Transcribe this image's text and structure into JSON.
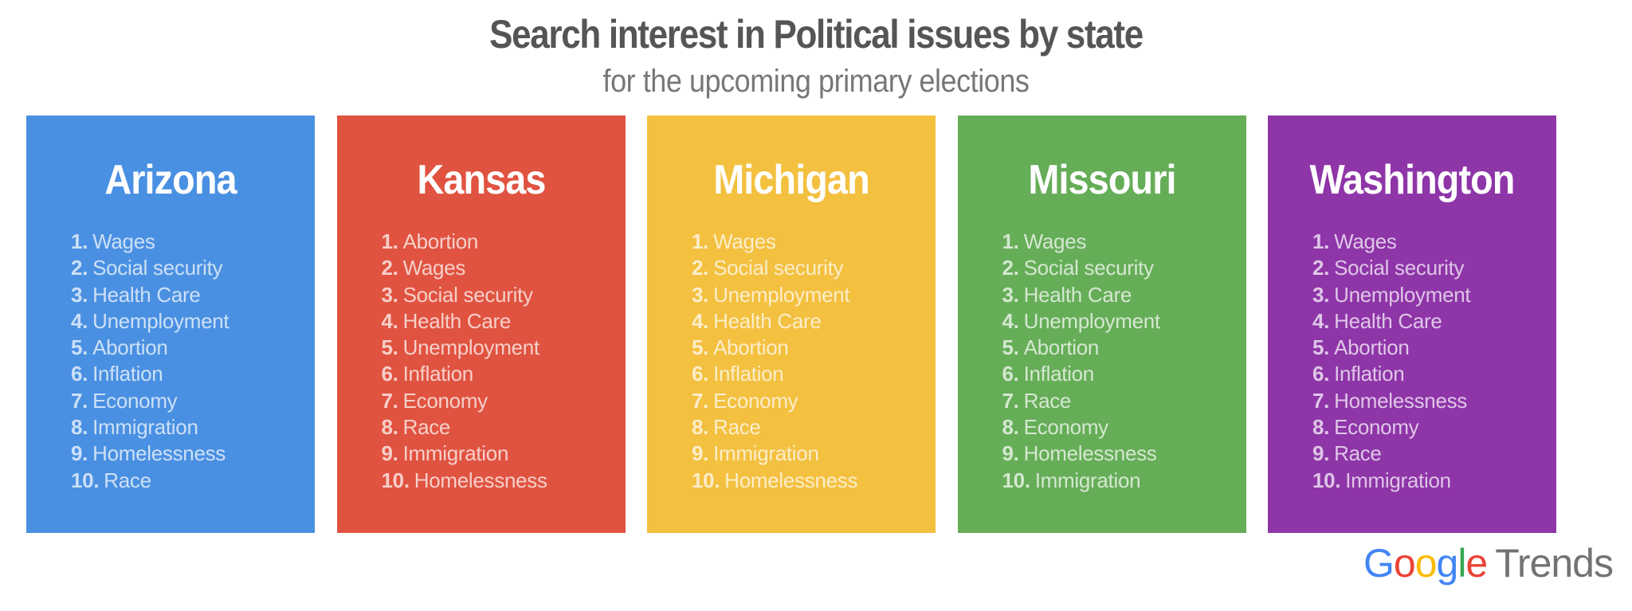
{
  "title": "Search interest in Political issues by state",
  "subtitle": "for the upcoming primary elections",
  "states": [
    {
      "name": "Arizona",
      "color": "#4a90e2",
      "items": [
        "Wages",
        "Social security",
        "Health Care",
        "Unemployment",
        "Abortion",
        "Inflation",
        "Economy",
        "Immigration",
        "Homelessness",
        "Race"
      ]
    },
    {
      "name": "Kansas",
      "color": "#e05340",
      "items": [
        "Abortion",
        "Wages",
        "Social security",
        "Health Care",
        "Unemployment",
        "Inflation",
        "Economy",
        "Race",
        "Immigration",
        "Homelessness"
      ]
    },
    {
      "name": "Michigan",
      "color": "#f3c040",
      "items": [
        "Wages",
        "Social security",
        "Unemployment",
        "Health Care",
        "Abortion",
        "Inflation",
        "Economy",
        "Race",
        "Immigration",
        "Homelessness"
      ]
    },
    {
      "name": "Missouri",
      "color": "#66ad58",
      "items": [
        "Wages",
        "Social security",
        "Health Care",
        "Unemployment",
        "Abortion",
        "Inflation",
        "Race",
        "Economy",
        "Homelessness",
        "Immigration"
      ]
    },
    {
      "name": "Washington",
      "color": "#8e35a8",
      "items": [
        "Wages",
        "Social security",
        "Unemployment",
        "Health Care",
        "Abortion",
        "Inflation",
        "Homelessness",
        "Economy",
        "Race",
        "Immigration"
      ]
    }
  ],
  "logo": {
    "google": "Google",
    "trends": "Trends",
    "letter_colors": [
      "#4285f4",
      "#ea4335",
      "#fbbc05",
      "#4285f4",
      "#34a853",
      "#ea4335"
    ]
  }
}
